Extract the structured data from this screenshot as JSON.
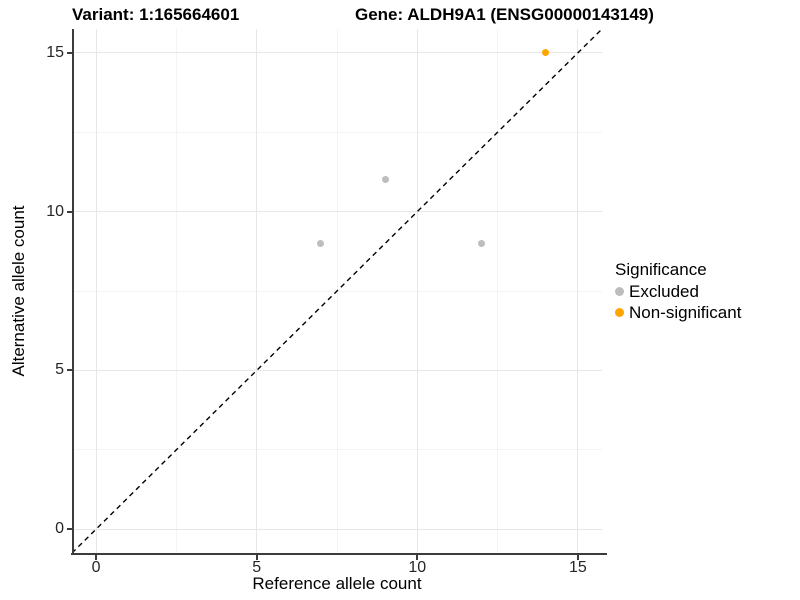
{
  "figure": {
    "title_left": "Variant: 1:165664601",
    "title_right": "Gene: ALDH9A1 (ENSG00000143149)"
  },
  "chart_data": {
    "type": "scatter",
    "title": "Variant: 1:165664601 | Gene: ALDH9A1 (ENSG00000143149)",
    "xlabel": "Reference allele count",
    "ylabel": "Alternative allele count",
    "xlim": [
      -0.75,
      15.75
    ],
    "ylim": [
      -0.75,
      15.75
    ],
    "x_ticks": [
      0,
      5,
      10,
      15
    ],
    "y_ticks": [
      0,
      5,
      10,
      15
    ],
    "x_minor_ticks": [
      2.5,
      7.5,
      12.5
    ],
    "y_minor_ticks": [
      2.5,
      7.5,
      12.5
    ],
    "grid": true,
    "series": [
      {
        "name": "Excluded",
        "color": "#bdbdbd",
        "points": [
          [
            7,
            9
          ],
          [
            9,
            11
          ],
          [
            12,
            9
          ]
        ]
      },
      {
        "name": "Non-significant",
        "color": "#ffa500",
        "points": [
          [
            14,
            15
          ]
        ]
      }
    ],
    "reference_line": {
      "kind": "identity y=x",
      "linestyle": "dashed",
      "color": "#000000"
    },
    "legend": {
      "title": "Significance",
      "position": "right"
    }
  },
  "colors": {
    "background": "#ffffff",
    "axis": "#3c3c3c",
    "grid_major": "#e7e7e7",
    "grid_minor": "#f4f4f4",
    "excluded": "#bdbdbd",
    "non_significant": "#ffa500"
  }
}
